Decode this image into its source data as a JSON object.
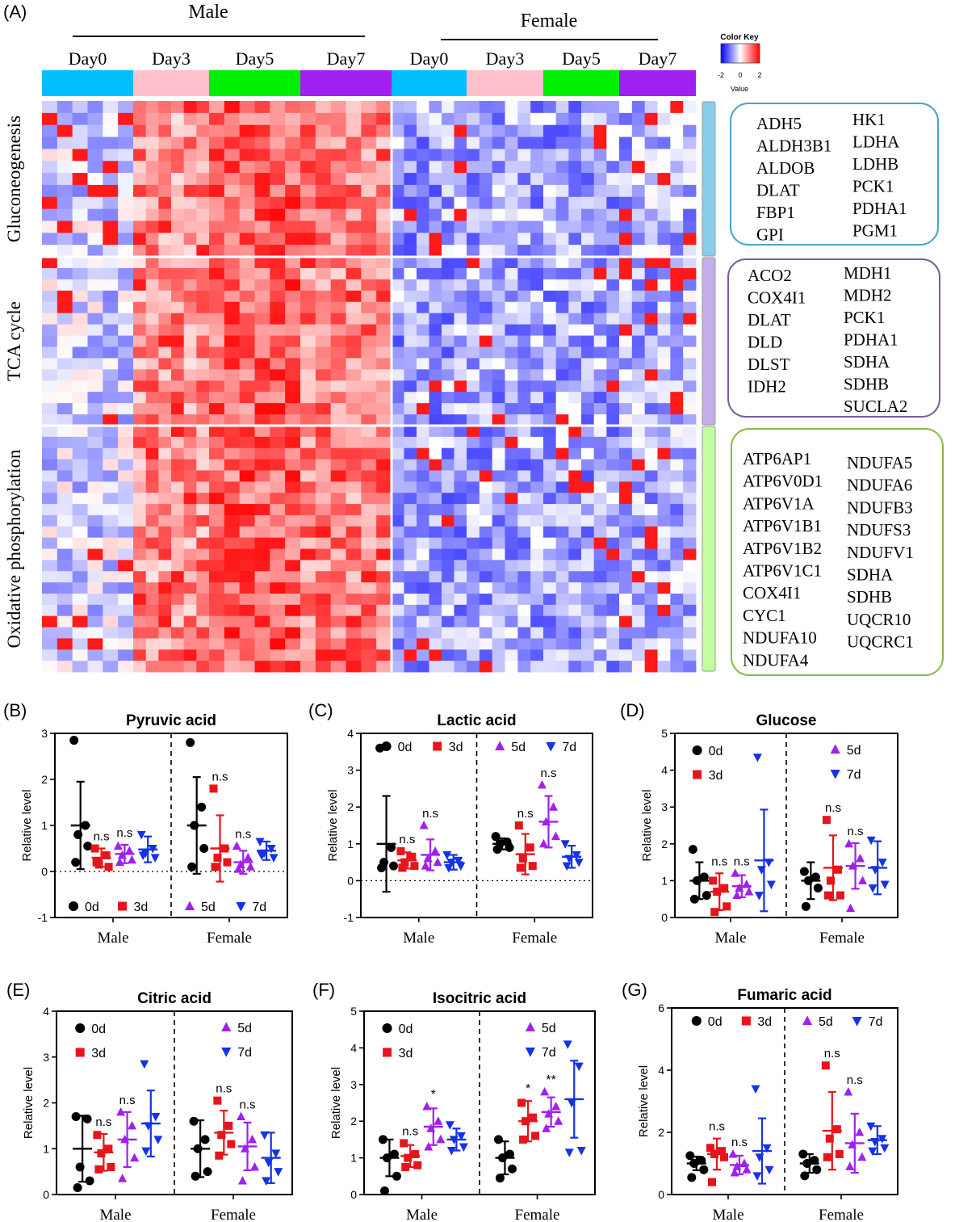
{
  "panels": {
    "A": "(A)",
    "B": "(B)",
    "C": "(C)",
    "D": "(D)",
    "E": "(E)",
    "F": "(F)",
    "G": "(G)"
  },
  "heatmap": {
    "sex_labels": [
      "Male",
      "Female"
    ],
    "day_labels": [
      "Day0",
      "Day3",
      "Day5",
      "Day7",
      "Day0",
      "Day3",
      "Day5",
      "Day7"
    ],
    "day_colors": [
      "#00bfff",
      "#ffc0cb",
      "#00ee00",
      "#a020f0",
      "#00bfff",
      "#ffc0cb",
      "#00ee00",
      "#a020f0"
    ],
    "pathways": [
      {
        "label": "Gluconeogenesis",
        "color": "#87ceeb"
      },
      {
        "label": "TCA cycle",
        "color": "#c4aee8"
      },
      {
        "label": "Oxidative phosphorylation",
        "color": "#c1ff9e"
      }
    ],
    "color_key": {
      "title": "Color Key",
      "value_label": "Value",
      "ticks": [
        "-2",
        "0",
        "2"
      ]
    },
    "gene_boxes": [
      {
        "border": "#4aa3c8",
        "left": [
          "ADH5",
          "ALDH3B1",
          "ALDOB",
          "DLAT",
          "FBP1",
          "GPI"
        ],
        "right": [
          "HK1",
          "LDHA",
          "LDHB",
          "PCK1",
          "PDHA1",
          "PGM1"
        ]
      },
      {
        "border": "#7b5c9e",
        "left": [
          "ACO2",
          "COX4I1",
          "DLAT",
          "DLD",
          "DLST",
          "IDH2"
        ],
        "right": [
          "MDH1",
          "MDH2",
          "PCK1",
          "PDHA1",
          "SDHA",
          "SDHB",
          "SUCLA2"
        ]
      },
      {
        "border": "#8ab84a",
        "left": [
          "ATP6AP1",
          "ATP6V0D1",
          "ATP6V1A",
          "ATP6V1B1",
          "ATP6V1B2",
          "ATP6V1C1",
          "COX4I1",
          "CYC1",
          "NDUFA10",
          "NDUFA4"
        ],
        "right": [
          "NDUFA5",
          "NDUFA6",
          "NDUFB3",
          "NDUFS3",
          "NDUFV1",
          "SDHA",
          "SDHB",
          "UQCR10",
          "UQCRC1"
        ]
      }
    ]
  },
  "colors": {
    "0d": "#000000",
    "3d": "#e8141b",
    "5d": "#a020f0",
    "7d": "#1432e6"
  },
  "chart_data": [
    {
      "id": "B",
      "type": "scatter",
      "title": "Pyruvic acid",
      "ylabel": "Relative level",
      "ylim": [
        -1,
        3
      ],
      "yticks": [
        "-1",
        "0",
        "1",
        "2",
        "3"
      ],
      "zero_line": true,
      "categories": [
        "Male",
        "Female"
      ],
      "legend": [
        "0d",
        "3d",
        "5d",
        "7d"
      ],
      "legend_pos": "bottom",
      "groups": [
        {
          "sex": "Male",
          "day": "0d",
          "mean": 1.0,
          "sd": 0.95,
          "points": [
            2.85,
            1.0,
            0.8,
            0.55,
            0.2
          ],
          "sig": ""
        },
        {
          "sex": "Male",
          "day": "3d",
          "mean": 0.3,
          "sd": 0.2,
          "points": [
            0.5,
            0.35,
            0.15,
            0.1,
            0.2
          ],
          "sig": "n.s"
        },
        {
          "sex": "Male",
          "day": "5d",
          "mean": 0.38,
          "sd": 0.2,
          "points": [
            0.55,
            0.45,
            0.35,
            0.25,
            0.2
          ],
          "sig": "n.s"
        },
        {
          "sex": "Male",
          "day": "7d",
          "mean": 0.48,
          "sd": 0.28,
          "points": [
            0.8,
            0.5,
            0.4,
            0.3,
            0.35
          ],
          "sig": ""
        },
        {
          "sex": "Female",
          "day": "0d",
          "mean": 1.0,
          "sd": 1.05,
          "points": [
            2.8,
            1.4,
            1.0,
            0.5,
            0.1
          ],
          "sig": ""
        },
        {
          "sex": "Female",
          "day": "3d",
          "mean": 0.5,
          "sd": 0.72,
          "points": [
            1.8,
            0.5,
            0.3,
            0.2,
            0.1
          ],
          "sig": "n.s"
        },
        {
          "sex": "Female",
          "day": "5d",
          "mean": 0.2,
          "sd": 0.25,
          "points": [
            0.55,
            0.3,
            0.15,
            0.1,
            0.05
          ],
          "sig": "n.s"
        },
        {
          "sex": "Female",
          "day": "7d",
          "mean": 0.45,
          "sd": 0.2,
          "points": [
            0.65,
            0.5,
            0.4,
            0.3,
            0.35
          ],
          "sig": ""
        }
      ]
    },
    {
      "id": "C",
      "type": "scatter",
      "title": "Lactic acid",
      "ylabel": "Relative level",
      "ylim": [
        -1,
        4
      ],
      "yticks": [
        "-1",
        "0",
        "1",
        "2",
        "3",
        "4"
      ],
      "zero_line": true,
      "categories": [
        "Male",
        "Female"
      ],
      "legend": [
        "0d",
        "3d",
        "5d",
        "7d"
      ],
      "legend_pos": "top",
      "groups": [
        {
          "sex": "Male",
          "day": "0d",
          "mean": 1.0,
          "sd": 1.3,
          "points": [
            3.6,
            0.9,
            0.5,
            0.4,
            0.35
          ],
          "sig": ""
        },
        {
          "sex": "Male",
          "day": "3d",
          "mean": 0.55,
          "sd": 0.22,
          "points": [
            0.8,
            0.65,
            0.5,
            0.4,
            0.35
          ],
          "sig": "n.s"
        },
        {
          "sex": "Male",
          "day": "5d",
          "mean": 0.7,
          "sd": 0.42,
          "points": [
            1.5,
            0.8,
            0.6,
            0.5,
            0.4
          ],
          "sig": "n.s"
        },
        {
          "sex": "Male",
          "day": "7d",
          "mean": 0.5,
          "sd": 0.2,
          "points": [
            0.7,
            0.55,
            0.5,
            0.4,
            0.35
          ],
          "sig": ""
        },
        {
          "sex": "Female",
          "day": "0d",
          "mean": 1.0,
          "sd": 0.15,
          "points": [
            1.2,
            1.05,
            1.0,
            0.9,
            0.85
          ],
          "sig": ""
        },
        {
          "sex": "Female",
          "day": "3d",
          "mean": 0.72,
          "sd": 0.55,
          "points": [
            1.5,
            0.9,
            0.6,
            0.4,
            0.35
          ],
          "sig": "n.s"
        },
        {
          "sex": "Female",
          "day": "5d",
          "mean": 1.6,
          "sd": 0.7,
          "points": [
            2.6,
            2.0,
            1.6,
            1.2,
            1.0
          ],
          "sig": "n.s"
        },
        {
          "sex": "Female",
          "day": "7d",
          "mean": 0.65,
          "sd": 0.3,
          "points": [
            1.0,
            0.7,
            0.6,
            0.5,
            0.4
          ],
          "sig": ""
        }
      ]
    },
    {
      "id": "D",
      "type": "scatter",
      "title": "Glucose",
      "ylabel": "Relative level",
      "ylim": [
        0,
        5
      ],
      "yticks": [
        "0",
        "1",
        "2",
        "3",
        "4",
        "5"
      ],
      "zero_line": false,
      "categories": [
        "Male",
        "Female"
      ],
      "legend": [
        "0d",
        "3d",
        "5d",
        "7d"
      ],
      "legend_pos": "top-split",
      "groups": [
        {
          "sex": "Male",
          "day": "0d",
          "mean": 1.0,
          "sd": 0.5,
          "points": [
            1.85,
            1.1,
            1.0,
            0.6,
            0.5
          ],
          "sig": ""
        },
        {
          "sex": "Male",
          "day": "3d",
          "mean": 0.7,
          "sd": 0.5,
          "points": [
            1.0,
            0.8,
            0.7,
            0.3,
            0.15
          ],
          "sig": "n.s"
        },
        {
          "sex": "Male",
          "day": "5d",
          "mean": 0.85,
          "sd": 0.3,
          "points": [
            1.2,
            0.9,
            0.8,
            0.7,
            0.6
          ],
          "sig": "n.s"
        },
        {
          "sex": "Male",
          "day": "7d",
          "mean": 1.55,
          "sd": 1.38,
          "points": [
            4.35,
            1.5,
            1.3,
            0.9,
            0.6
          ],
          "sig": ""
        },
        {
          "sex": "Female",
          "day": "0d",
          "mean": 1.0,
          "sd": 0.5,
          "points": [
            1.25,
            1.1,
            1.0,
            0.8,
            0.3
          ],
          "sig": ""
        },
        {
          "sex": "Female",
          "day": "3d",
          "mean": 1.35,
          "sd": 0.88,
          "points": [
            2.65,
            1.3,
            1.0,
            0.6,
            0.6
          ],
          "sig": "n.s"
        },
        {
          "sex": "Female",
          "day": "5d",
          "mean": 1.4,
          "sd": 0.62,
          "points": [
            2.0,
            1.6,
            1.4,
            1.0,
            0.25
          ],
          "sig": "n.s"
        },
        {
          "sex": "Female",
          "day": "7d",
          "mean": 1.35,
          "sd": 0.72,
          "points": [
            2.1,
            1.5,
            1.3,
            0.9,
            0.8
          ],
          "sig": ""
        }
      ]
    },
    {
      "id": "E",
      "type": "scatter",
      "title": "Citric acid",
      "ylabel": "Relative level",
      "ylim": [
        0,
        4
      ],
      "yticks": [
        "0",
        "1",
        "2",
        "3",
        "4"
      ],
      "zero_line": false,
      "categories": [
        "Male",
        "Female"
      ],
      "legend": [
        "0d",
        "3d",
        "5d",
        "7d"
      ],
      "legend_pos": "top-split",
      "groups": [
        {
          "sex": "Male",
          "day": "0d",
          "mean": 1.0,
          "sd": 0.72,
          "points": [
            1.7,
            1.65,
            0.6,
            0.3,
            0.15
          ],
          "sig": ""
        },
        {
          "sex": "Male",
          "day": "3d",
          "mean": 0.92,
          "sd": 0.4,
          "points": [
            1.3,
            1.0,
            0.9,
            0.6,
            0.55
          ],
          "sig": "n.s"
        },
        {
          "sex": "Male",
          "day": "5d",
          "mean": 1.2,
          "sd": 0.6,
          "points": [
            1.8,
            1.5,
            1.2,
            0.8,
            0.35
          ],
          "sig": "n.s"
        },
        {
          "sex": "Male",
          "day": "7d",
          "mean": 1.55,
          "sd": 0.72,
          "points": [
            2.85,
            1.7,
            1.5,
            1.2,
            0.95
          ],
          "sig": ""
        },
        {
          "sex": "Female",
          "day": "0d",
          "mean": 1.0,
          "sd": 0.62,
          "points": [
            1.6,
            1.2,
            1.0,
            0.5,
            0.4
          ],
          "sig": ""
        },
        {
          "sex": "Female",
          "day": "3d",
          "mean": 1.35,
          "sd": 0.48,
          "points": [
            2.05,
            1.5,
            1.3,
            1.1,
            0.85
          ],
          "sig": "n.s"
        },
        {
          "sex": "Female",
          "day": "5d",
          "mean": 1.05,
          "sd": 0.52,
          "points": [
            1.7,
            1.2,
            1.0,
            0.6,
            0.3
          ],
          "sig": "n.s"
        },
        {
          "sex": "Female",
          "day": "7d",
          "mean": 0.8,
          "sd": 0.55,
          "points": [
            1.3,
            0.9,
            0.7,
            0.5,
            0.3
          ],
          "sig": ""
        }
      ]
    },
    {
      "id": "F",
      "type": "scatter",
      "title": "Isocitric acid",
      "ylabel": "Relative level",
      "ylim": [
        0,
        5
      ],
      "yticks": [
        "0",
        "1",
        "2",
        "3",
        "4",
        "5"
      ],
      "zero_line": false,
      "categories": [
        "Male",
        "Female"
      ],
      "legend": [
        "0d",
        "3d",
        "5d",
        "7d"
      ],
      "legend_pos": "top-split",
      "groups": [
        {
          "sex": "Male",
          "day": "0d",
          "mean": 1.0,
          "sd": 0.5,
          "points": [
            1.5,
            1.1,
            1.0,
            0.5,
            0.1
          ],
          "sig": ""
        },
        {
          "sex": "Male",
          "day": "3d",
          "mean": 1.05,
          "sd": 0.3,
          "points": [
            1.4,
            1.1,
            1.0,
            0.8,
            0.75
          ],
          "sig": "n.s"
        },
        {
          "sex": "Male",
          "day": "5d",
          "mean": 1.85,
          "sd": 0.5,
          "points": [
            2.4,
            2.0,
            1.8,
            1.5,
            1.3
          ],
          "sig": "*"
        },
        {
          "sex": "Male",
          "day": "7d",
          "mean": 1.5,
          "sd": 0.3,
          "points": [
            1.9,
            1.6,
            1.5,
            1.3,
            1.2
          ],
          "sig": ""
        },
        {
          "sex": "Female",
          "day": "0d",
          "mean": 1.0,
          "sd": 0.45,
          "points": [
            1.5,
            1.1,
            1.0,
            0.7,
            0.45
          ],
          "sig": ""
        },
        {
          "sex": "Female",
          "day": "3d",
          "mean": 2.0,
          "sd": 0.55,
          "points": [
            2.5,
            2.1,
            2.0,
            1.6,
            1.5
          ],
          "sig": "*"
        },
        {
          "sex": "Female",
          "day": "5d",
          "mean": 2.25,
          "sd": 0.4,
          "points": [
            2.8,
            2.4,
            2.2,
            2.0,
            1.8
          ],
          "sig": "**"
        },
        {
          "sex": "Female",
          "day": "7d",
          "mean": 2.6,
          "sd": 1.05,
          "points": [
            4.1,
            3.5,
            2.5,
            1.2,
            1.15
          ],
          "sig": ""
        }
      ]
    },
    {
      "id": "G",
      "type": "scatter",
      "title": "Fumaric acid",
      "ylabel": "Relative level",
      "ylim": [
        0,
        6
      ],
      "yticks": [
        "0",
        "2",
        "4",
        "6"
      ],
      "zero_line": false,
      "categories": [
        "Male",
        "Female"
      ],
      "legend": [
        "0d",
        "3d",
        "5d",
        "7d"
      ],
      "legend_pos": "top",
      "groups": [
        {
          "sex": "Male",
          "day": "0d",
          "mean": 1.0,
          "sd": 0.22,
          "points": [
            1.25,
            1.1,
            1.0,
            0.8,
            0.55
          ],
          "sig": ""
        },
        {
          "sex": "Male",
          "day": "3d",
          "mean": 1.3,
          "sd": 0.5,
          "points": [
            1.5,
            1.4,
            1.3,
            1.2,
            0.4
          ],
          "sig": "n.s"
        },
        {
          "sex": "Male",
          "day": "5d",
          "mean": 0.95,
          "sd": 0.3,
          "points": [
            1.3,
            1.0,
            0.9,
            0.8,
            0.7
          ],
          "sig": "n.s"
        },
        {
          "sex": "Male",
          "day": "7d",
          "mean": 1.4,
          "sd": 1.05,
          "points": [
            3.4,
            1.5,
            1.2,
            0.8,
            0.6
          ],
          "sig": ""
        },
        {
          "sex": "Female",
          "day": "0d",
          "mean": 1.0,
          "sd": 0.3,
          "points": [
            1.3,
            1.1,
            1.0,
            0.8,
            0.6
          ],
          "sig": ""
        },
        {
          "sex": "Female",
          "day": "3d",
          "mean": 2.05,
          "sd": 1.25,
          "points": [
            4.15,
            2.1,
            1.8,
            1.3,
            1.2
          ],
          "sig": "n.s"
        },
        {
          "sex": "Female",
          "day": "5d",
          "mean": 1.65,
          "sd": 0.95,
          "points": [
            3.3,
            2.0,
            1.6,
            1.2,
            0.9
          ],
          "sig": "n.s"
        },
        {
          "sex": "Female",
          "day": "7d",
          "mean": 1.75,
          "sd": 0.45,
          "points": [
            2.2,
            1.8,
            1.7,
            1.5,
            1.4
          ],
          "sig": ""
        }
      ]
    }
  ]
}
